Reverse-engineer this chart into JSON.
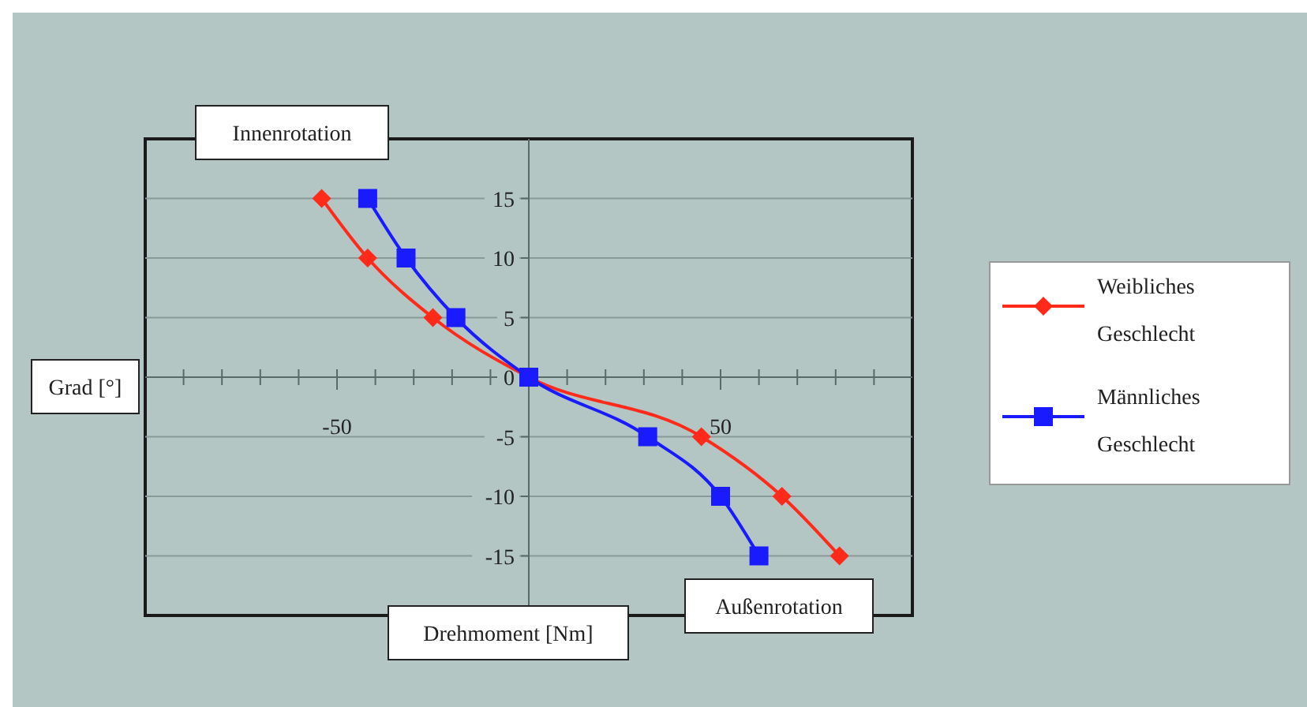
{
  "chart_data": {
    "type": "line",
    "xlabel": "Drehmoment [Nm]",
    "ylabel": "Grad [°]",
    "annotations": [
      "Innenrotation",
      "Außenrotation"
    ],
    "xlim": [
      -100,
      100
    ],
    "ylim": [
      -20,
      20
    ],
    "xticks": [
      {
        "value": -90,
        "label": null
      },
      {
        "value": -80,
        "label": null
      },
      {
        "value": -70,
        "label": null
      },
      {
        "value": -60,
        "label": null
      },
      {
        "value": -50,
        "label": "-50"
      },
      {
        "value": -40,
        "label": null
      },
      {
        "value": -30,
        "label": null
      },
      {
        "value": -20,
        "label": null
      },
      {
        "value": -10,
        "label": null
      },
      {
        "value": 10,
        "label": null
      },
      {
        "value": 20,
        "label": null
      },
      {
        "value": 30,
        "label": null
      },
      {
        "value": 40,
        "label": null
      },
      {
        "value": 50,
        "label": "50"
      },
      {
        "value": 60,
        "label": null
      },
      {
        "value": 70,
        "label": null
      },
      {
        "value": 80,
        "label": null
      },
      {
        "value": 90,
        "label": null
      }
    ],
    "yticks": [
      -15,
      -10,
      -5,
      0,
      5,
      10,
      15
    ],
    "grid": "y",
    "legend": "right",
    "series": [
      {
        "name": "Weibliches Geschlecht",
        "color": "#ff2a1a",
        "marker": "diamond",
        "x": [
          -54,
          -42,
          -25,
          0,
          45,
          66,
          81
        ],
        "values": [
          15,
          10,
          5,
          0,
          -5,
          -10,
          -15
        ]
      },
      {
        "name": "Männliches Geschlecht",
        "color": "#1a1aff",
        "marker": "square",
        "x": [
          -42,
          -32,
          -19,
          0,
          31,
          50,
          60
        ],
        "values": [
          15,
          10,
          5,
          0,
          -5,
          -10,
          -15
        ]
      }
    ]
  }
}
